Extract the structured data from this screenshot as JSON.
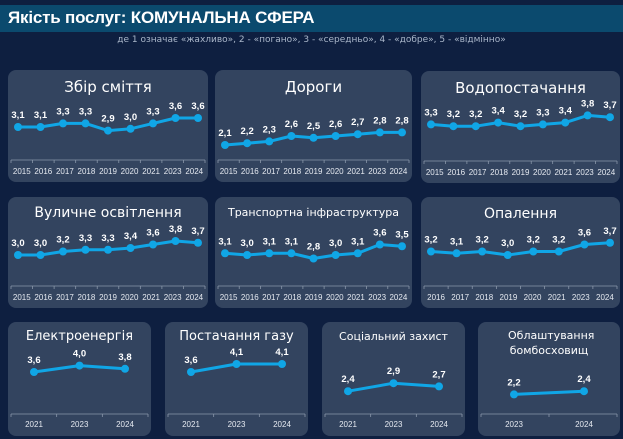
{
  "header": {
    "title": "Якість послуг: КОМУНАЛЬНА СФЕРА",
    "subtitle": "де 1 означає «жахливо»,  2 - «погано», 3 - «середньо», 4 - «добре», 5 - «відмінно»"
  },
  "colors": {
    "line": "#10a6e6",
    "panel": "#33445f",
    "background": "#0e1f40",
    "titlebar": "#0b4a6e"
  },
  "chart_data": [
    {
      "type": "line",
      "title": "Збір сміття",
      "categories": [
        "2015",
        "2016",
        "2017",
        "2018",
        "2019",
        "2020",
        "2021",
        "2023",
        "2024"
      ],
      "values": [
        3.1,
        3.1,
        3.3,
        3.3,
        2.9,
        3.0,
        3.3,
        3.6,
        3.6
      ],
      "labels": [
        "3,1",
        "3,1",
        "3,3",
        "3,3",
        "2,9",
        "3,0",
        "3,3",
        "3,6",
        "3,6"
      ]
    },
    {
      "type": "line",
      "title": "Дороги",
      "categories": [
        "2015",
        "2016",
        "2017",
        "2018",
        "2019",
        "2020",
        "2021",
        "2023",
        "2024"
      ],
      "values": [
        2.1,
        2.2,
        2.3,
        2.6,
        2.5,
        2.6,
        2.7,
        2.8,
        2.8
      ],
      "labels": [
        "2,1",
        "2,2",
        "2,3",
        "2,6",
        "2,5",
        "2,6",
        "2,7",
        "2,8",
        "2,8"
      ]
    },
    {
      "type": "line",
      "title": "Водопостачання",
      "categories": [
        "2015",
        "2016",
        "2017",
        "2018",
        "2019",
        "2020",
        "2021",
        "2023",
        "2024"
      ],
      "values": [
        3.3,
        3.2,
        3.2,
        3.4,
        3.2,
        3.3,
        3.4,
        3.8,
        3.7
      ],
      "labels": [
        "3,3",
        "3,2",
        "3,2",
        "3,4",
        "3,2",
        "3,3",
        "3,4",
        "3,8",
        "3,7"
      ]
    },
    {
      "type": "line",
      "title": "Вуличне освітлення",
      "categories": [
        "2015",
        "2016",
        "2017",
        "2018",
        "2019",
        "2020",
        "2021",
        "2023",
        "2024"
      ],
      "values": [
        3.0,
        3.0,
        3.2,
        3.3,
        3.3,
        3.4,
        3.6,
        3.8,
        3.7
      ],
      "labels": [
        "3,0",
        "3,0",
        "3,2",
        "3,3",
        "3,3",
        "3,4",
        "3,6",
        "3,8",
        "3,7"
      ]
    },
    {
      "type": "line",
      "title": "Транспортна інфраструктура",
      "categories": [
        "2015",
        "2016",
        "2017",
        "2018",
        "2019",
        "2020",
        "2021",
        "2023",
        "2024"
      ],
      "values": [
        3.1,
        3.0,
        3.1,
        3.1,
        2.8,
        3.0,
        3.1,
        3.6,
        3.5
      ],
      "labels": [
        "3,1",
        "3,0",
        "3,1",
        "3,1",
        "2,8",
        "3,0",
        "3,1",
        "3,6",
        "3,5"
      ]
    },
    {
      "type": "line",
      "title": "Опалення",
      "categories": [
        "2016",
        "2017",
        "2018",
        "2019",
        "2020",
        "2021",
        "2023",
        "2024"
      ],
      "values": [
        3.2,
        3.1,
        3.2,
        3.0,
        3.2,
        3.2,
        3.6,
        3.7
      ],
      "labels": [
        "3,2",
        "3,1",
        "3,2",
        "3,0",
        "3,2",
        "3,2",
        "3,6",
        "3,7"
      ]
    },
    {
      "type": "line",
      "title": "Електроенергія",
      "categories": [
        "2021",
        "2023",
        "2024"
      ],
      "values": [
        3.6,
        4.0,
        3.8
      ],
      "labels": [
        "3,6",
        "4,0",
        "3,8"
      ]
    },
    {
      "type": "line",
      "title": "Постачання газу",
      "categories": [
        "2021",
        "2023",
        "2024"
      ],
      "values": [
        3.6,
        4.1,
        4.1
      ],
      "labels": [
        "3,6",
        "4,1",
        "4,1"
      ]
    },
    {
      "type": "line",
      "title": "Соціальний захист",
      "categories": [
        "2021",
        "2023",
        "2024"
      ],
      "values": [
        2.4,
        2.9,
        2.7
      ],
      "labels": [
        "2,4",
        "2,9",
        "2,7"
      ]
    },
    {
      "type": "line",
      "title": "Облаштування бомбосховищ",
      "categories": [
        "2023",
        "2024"
      ],
      "values": [
        2.2,
        2.4
      ],
      "labels": [
        "2,2",
        "2,4"
      ]
    }
  ]
}
